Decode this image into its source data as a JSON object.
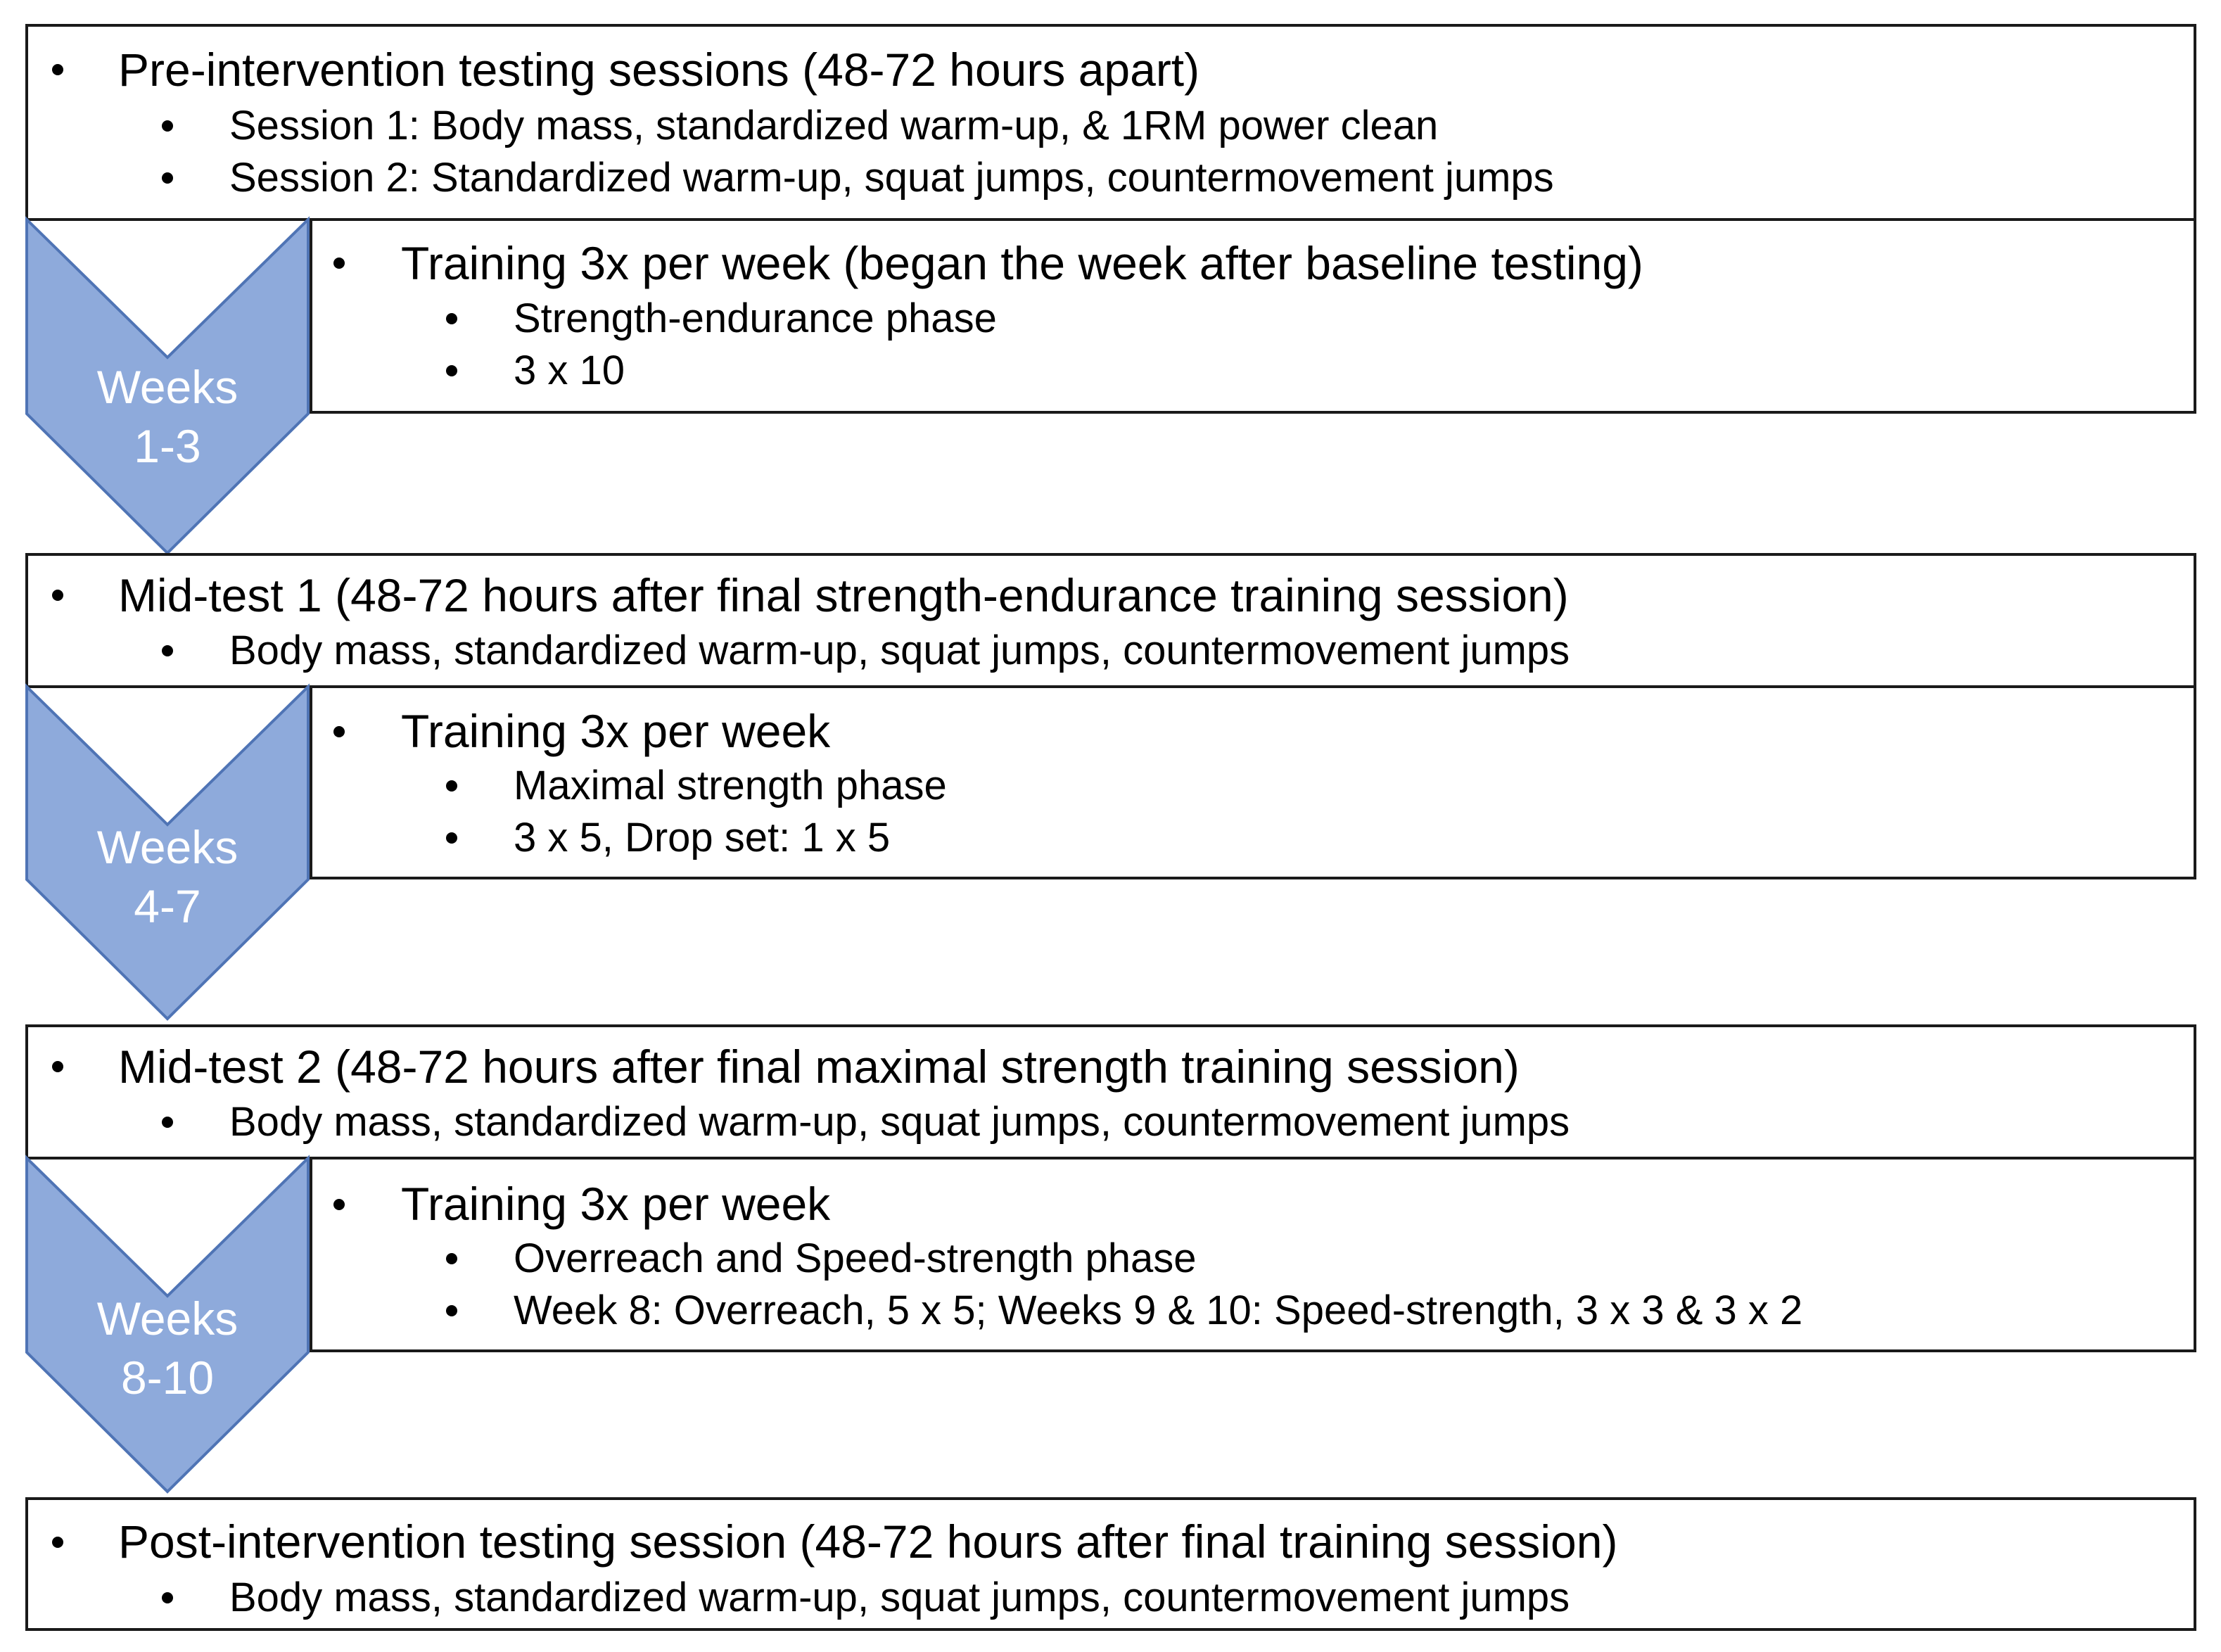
{
  "colors": {
    "chevron_fill": "#8eaadb",
    "chevron_stroke": "#4f74b5",
    "border": "#1a1a1a",
    "label_text": "#ffffff"
  },
  "pre": {
    "title": "Pre-intervention testing sessions (48-72 hours apart)",
    "items": [
      "Session 1: Body mass, standardized warm-up, & 1RM power clean",
      "Session 2: Standardized warm-up, squat jumps, countermovement jumps"
    ]
  },
  "phase1": {
    "weeks_line1": "Weeks",
    "weeks_line2": "1-3",
    "title": "Training 3x per week (began the week after baseline testing)",
    "items": [
      "Strength-endurance phase",
      "3 x 10"
    ]
  },
  "mid1": {
    "title": "Mid-test 1 (48-72 hours after final strength-endurance training session)",
    "items": [
      "Body mass, standardized warm-up, squat jumps, countermovement jumps"
    ]
  },
  "phase2": {
    "weeks_line1": "Weeks",
    "weeks_line2": "4-7",
    "title": "Training 3x per week",
    "items": [
      "Maximal strength phase",
      "3 x 5, Drop set: 1 x 5"
    ]
  },
  "mid2": {
    "title": "Mid-test 2 (48-72 hours after final maximal strength training session)",
    "items": [
      "Body mass, standardized warm-up, squat jumps, countermovement jumps"
    ]
  },
  "phase3": {
    "weeks_line1": "Weeks",
    "weeks_line2": "8-10",
    "title": "Training 3x per week",
    "items": [
      "Overreach and Speed-strength phase",
      "Week 8: Overreach, 5 x 5; Weeks 9 & 10: Speed-strength, 3 x 3 & 3 x 2"
    ]
  },
  "post": {
    "title": "Post-intervention testing session (48-72 hours after final training session)",
    "items": [
      "Body mass, standardized warm-up, squat jumps, countermovement jumps"
    ]
  }
}
